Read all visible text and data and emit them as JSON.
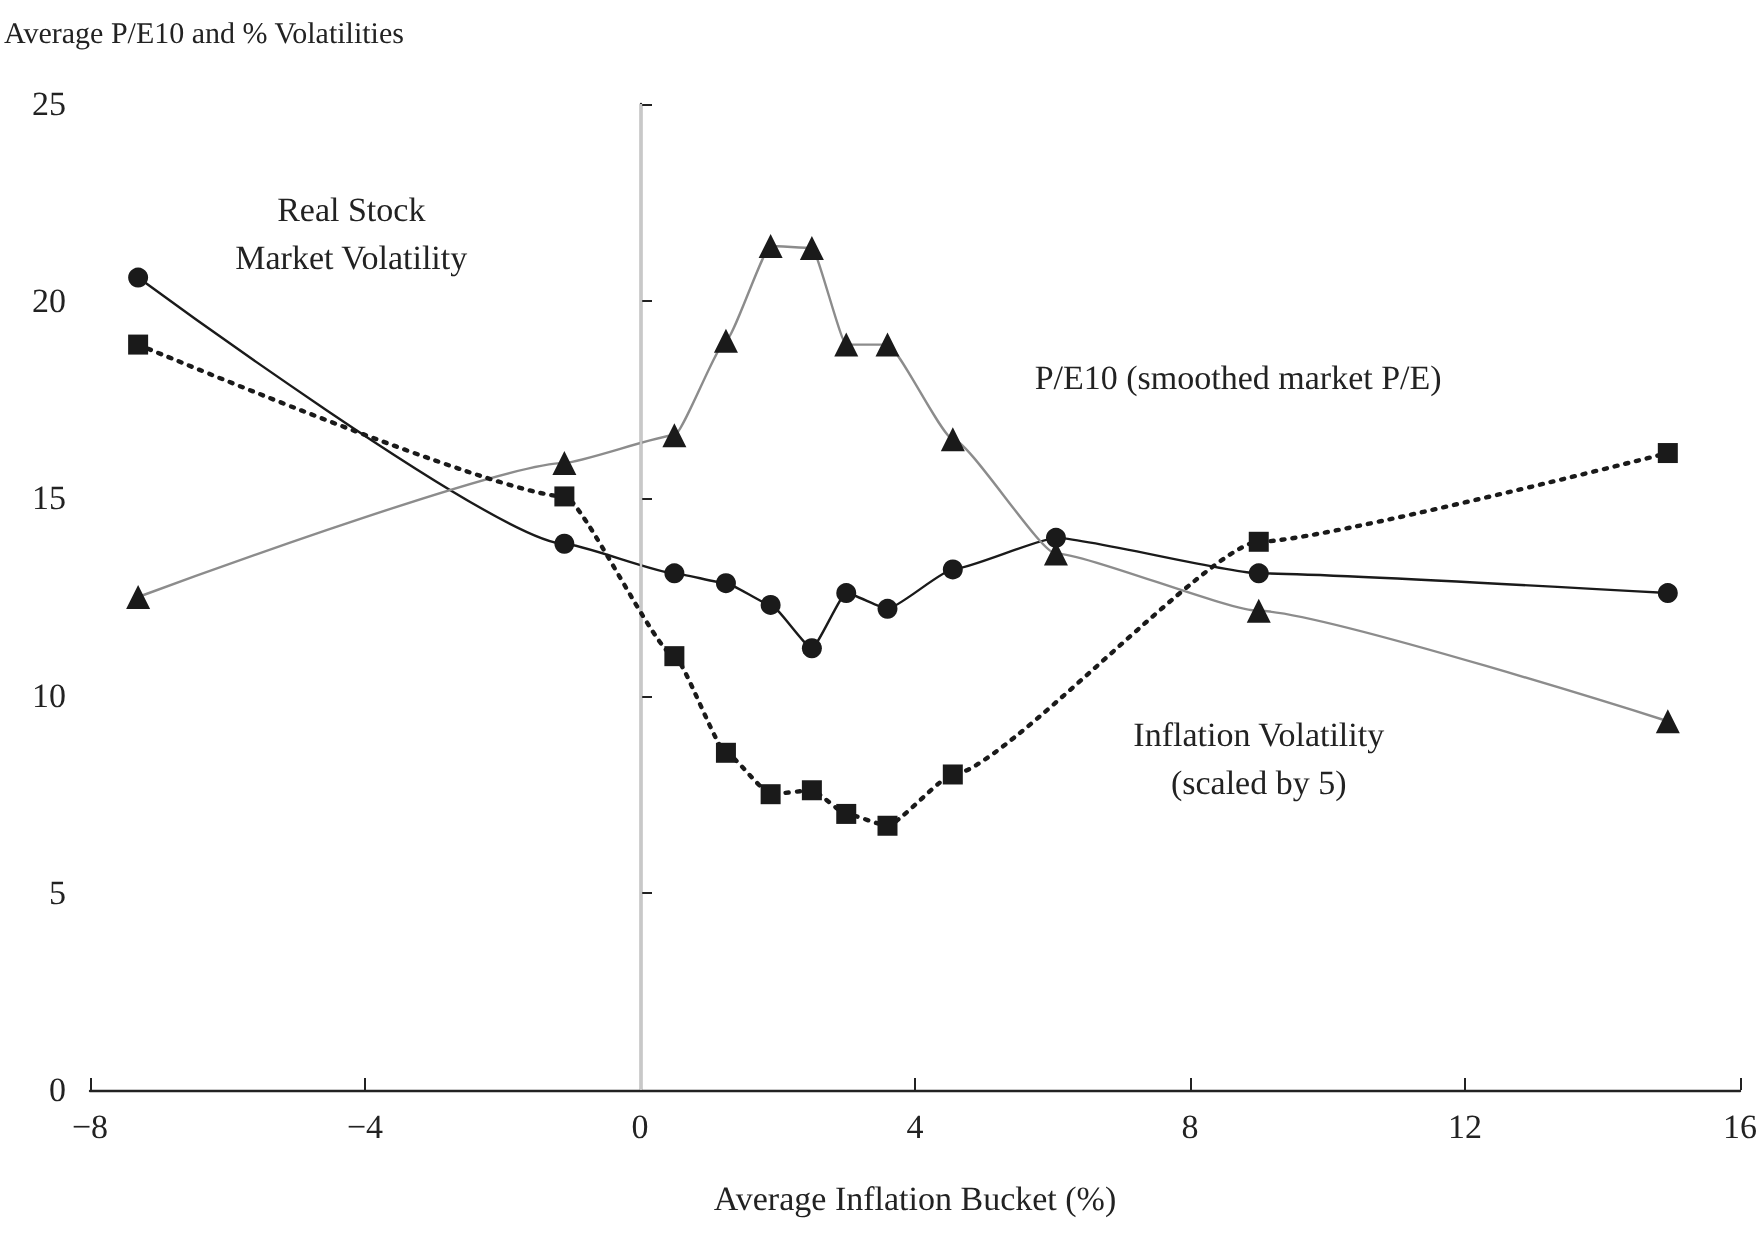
{
  "chart_data": {
    "type": "line",
    "ylabel": "Average P/E10 and % Volatilities",
    "xlabel": "Average Inflation Bucket (%)",
    "x": [
      -7.3,
      -1.1,
      0.5,
      1.25,
      1.9,
      2.5,
      3.0,
      3.6,
      4.55,
      6.05,
      9.0,
      14.95
    ],
    "series": [
      {
        "color": "#1a1a1a",
        "marker": "circle",
        "line_style": "solid",
        "values": [
          20.6,
          13.85,
          13.1,
          12.85,
          12.3,
          11.2,
          12.6,
          12.2,
          13.2,
          14.0,
          13.1,
          12.6
        ]
      },
      {
        "color": "#8c8c8c",
        "marker": "triangle",
        "line_style": "solid",
        "values": [
          12.5,
          15.9,
          16.6,
          19.0,
          21.4,
          21.35,
          18.9,
          18.9,
          16.5,
          13.6,
          12.15,
          9.35
        ]
      },
      {
        "color": "#1a1a1a",
        "marker": "square",
        "line_style": "dotted",
        "x": [
          -7.3,
          -1.1,
          0.5,
          1.25,
          1.9,
          2.5,
          3.0,
          3.6,
          4.55,
          9.0,
          14.95
        ],
        "values": [
          18.9,
          15.05,
          11.0,
          8.55,
          7.5,
          7.6,
          7.0,
          6.7,
          8.0,
          13.9,
          16.15
        ]
      }
    ],
    "xlim": [
      -8,
      16
    ],
    "xticks": [
      {
        "value": -8,
        "label": "−8"
      },
      {
        "value": -4,
        "label": "−4"
      },
      0,
      4,
      8,
      12,
      16
    ],
    "ylim": [
      0,
      25
    ],
    "yticks": [
      0,
      5,
      10,
      15,
      20,
      25
    ],
    "grid": false,
    "ref_lines": [
      {
        "axis": "x",
        "value": 0,
        "color": "#c8c8c8"
      }
    ],
    "annotations": [
      "Real Stock\nMarket Volatility",
      "P/E10 (smoothed market P/E)",
      "Inflation Volatility\n(scaled by 5)"
    ]
  }
}
